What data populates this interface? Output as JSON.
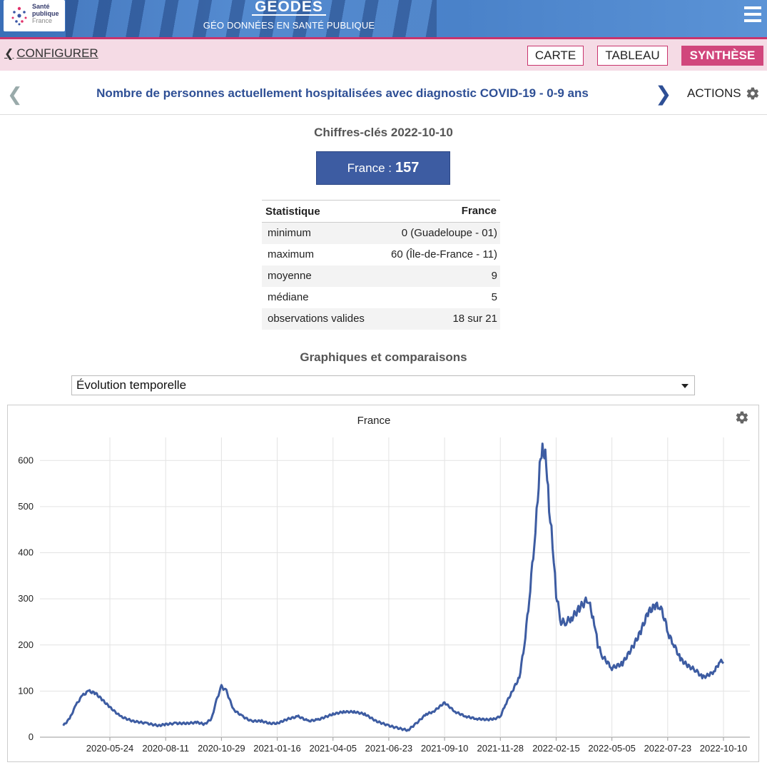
{
  "header": {
    "logo_line1": "Santé",
    "logo_line2": "publique",
    "logo_line3": "France",
    "title": "GÉODES",
    "subtitle": "GÉO DONNÉES EN SANTÉ PUBLIQUE"
  },
  "configbar": {
    "back_label": "CONFIGURER",
    "modes": [
      "CARTE",
      "TABLEAU",
      "SYNTHÈSE"
    ],
    "active_mode": "SYNTHÈSE"
  },
  "indicator": {
    "title": "Nombre de personnes actuellement hospitalisées avec diagnostic COVID-19 - 0-9 ans",
    "actions_label": "ACTIONS"
  },
  "key_figures": {
    "heading": "Chiffres-clés 2022-10-10",
    "label": "France :",
    "value": "157"
  },
  "stats_table": {
    "col1": "Statistique",
    "col2": "France",
    "rows": [
      {
        "label": "minimum",
        "value": "0 (Guadeloupe - 01)"
      },
      {
        "label": "maximum",
        "value": "60 (Île-de-France - 11)"
      },
      {
        "label": "moyenne",
        "value": "9"
      },
      {
        "label": "médiane",
        "value": "5"
      },
      {
        "label": "observations valides",
        "value": "18 sur 21"
      }
    ]
  },
  "charts_section": {
    "heading": "Graphiques et comparaisons",
    "selected": "Évolution temporelle"
  },
  "colors": {
    "accent": "#3d5ca2",
    "pink": "#d1467c",
    "line": "#3d5ca2"
  },
  "chart_data": {
    "type": "line",
    "title": "France",
    "xlabel": "",
    "ylabel": "",
    "ylim": [
      0,
      650
    ],
    "yticks": [
      0,
      100,
      200,
      300,
      400,
      500,
      600
    ],
    "xticks": [
      "2020-05-24",
      "2020-08-11",
      "2020-10-29",
      "2021-01-16",
      "2021-04-05",
      "2021-06-23",
      "2021-09-10",
      "2021-11-28",
      "2022-02-15",
      "2022-05-05",
      "2022-07-23",
      "2022-10-10"
    ],
    "grid": true,
    "series": [
      {
        "x": [
          "2020-03-19",
          "2020-03-28",
          "2020-04-06",
          "2020-04-15",
          "2020-04-24",
          "2020-05-04",
          "2020-05-14",
          "2020-05-24",
          "2020-06-08",
          "2020-06-25",
          "2020-07-15",
          "2020-08-01",
          "2020-08-11",
          "2020-08-25",
          "2020-09-10",
          "2020-09-25",
          "2020-10-05",
          "2020-10-15",
          "2020-10-22",
          "2020-10-29",
          "2020-11-05",
          "2020-11-15",
          "2020-11-28",
          "2020-12-10",
          "2020-12-25",
          "2021-01-05",
          "2021-01-16",
          "2021-02-01",
          "2021-02-15",
          "2021-03-01",
          "2021-03-15",
          "2021-04-05",
          "2021-04-20",
          "2021-05-05",
          "2021-05-20",
          "2021-06-05",
          "2021-06-23",
          "2021-07-05",
          "2021-07-20",
          "2021-08-01",
          "2021-08-15",
          "2021-08-25",
          "2021-09-10",
          "2021-09-25",
          "2021-10-10",
          "2021-10-25",
          "2021-11-10",
          "2021-11-20",
          "2021-11-28",
          "2021-12-05",
          "2021-12-15",
          "2021-12-25",
          "2022-01-01",
          "2022-01-08",
          "2022-01-15",
          "2022-01-20",
          "2022-01-24",
          "2022-01-28",
          "2022-02-01",
          "2022-02-05",
          "2022-02-10",
          "2022-02-15",
          "2022-02-22",
          "2022-03-01",
          "2022-03-10",
          "2022-03-20",
          "2022-04-01",
          "2022-04-10",
          "2022-04-15",
          "2022-04-22",
          "2022-05-05",
          "2022-05-20",
          "2022-06-05",
          "2022-06-15",
          "2022-06-25",
          "2022-07-05",
          "2022-07-12",
          "2022-07-18",
          "2022-07-25",
          "2022-08-01",
          "2022-08-10",
          "2022-08-20",
          "2022-09-01",
          "2022-09-10",
          "2022-09-20",
          "2022-09-28",
          "2022-10-05",
          "2022-10-10"
        ],
        "y": [
          25,
          40,
          70,
          90,
          100,
          95,
          80,
          65,
          45,
          35,
          30,
          25,
          28,
          30,
          30,
          32,
          28,
          40,
          80,
          110,
          100,
          60,
          45,
          35,
          35,
          30,
          30,
          40,
          45,
          35,
          38,
          50,
          55,
          55,
          50,
          35,
          25,
          20,
          15,
          30,
          50,
          55,
          75,
          55,
          45,
          40,
          38,
          40,
          45,
          70,
          100,
          130,
          200,
          300,
          420,
          520,
          615,
          625,
          600,
          500,
          420,
          310,
          250,
          250,
          260,
          280,
          300,
          250,
          200,
          175,
          150,
          160,
          200,
          230,
          270,
          285,
          285,
          260,
          220,
          200,
          170,
          155,
          145,
          130,
          135,
          145,
          165,
          160
        ]
      }
    ]
  }
}
